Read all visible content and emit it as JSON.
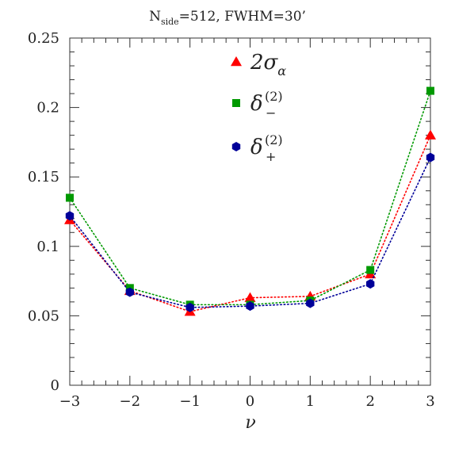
{
  "chart_data": {
    "type": "line",
    "title_main": "N",
    "title_sub": "side",
    "title_rest": "=512,  FWHM=30’",
    "xlabel": "ν",
    "ylabel": "",
    "x": [
      -3,
      -2,
      -1,
      0,
      1,
      2,
      3
    ],
    "xlim": [
      -3,
      3
    ],
    "ylim": [
      0,
      0.25
    ],
    "x_ticks": [
      -3,
      -2,
      -1,
      0,
      1,
      2,
      3
    ],
    "x_tick_labels": [
      "−3",
      "−2",
      "−1",
      "0",
      "1",
      "2",
      "3"
    ],
    "y_ticks": [
      0,
      0.05,
      0.1,
      0.15,
      0.2,
      0.25
    ],
    "y_tick_labels": [
      "0",
      "0.05",
      "0.1",
      "0.15",
      "0.2",
      "0.25"
    ],
    "grid": false,
    "legend_position": "top-center",
    "series": [
      {
        "name": "2σα",
        "legend_main": "2σ",
        "legend_sub": "α",
        "legend_sup": "",
        "marker": "triangle",
        "color": "#ff0000",
        "values": [
          0.119,
          0.068,
          0.053,
          0.063,
          0.064,
          0.08,
          0.18
        ]
      },
      {
        "name": "δ−(2)",
        "legend_main": "δ",
        "legend_sub": "−",
        "legend_sup": "(2)",
        "marker": "square",
        "color": "#009900",
        "values": [
          0.135,
          0.07,
          0.058,
          0.058,
          0.061,
          0.083,
          0.212
        ]
      },
      {
        "name": "δ+(2)",
        "legend_main": "δ",
        "legend_sub": "+",
        "legend_sup": "(2)",
        "marker": "hexagon",
        "color": "#000099",
        "values": [
          0.122,
          0.067,
          0.056,
          0.057,
          0.059,
          0.073,
          0.164
        ]
      }
    ]
  }
}
